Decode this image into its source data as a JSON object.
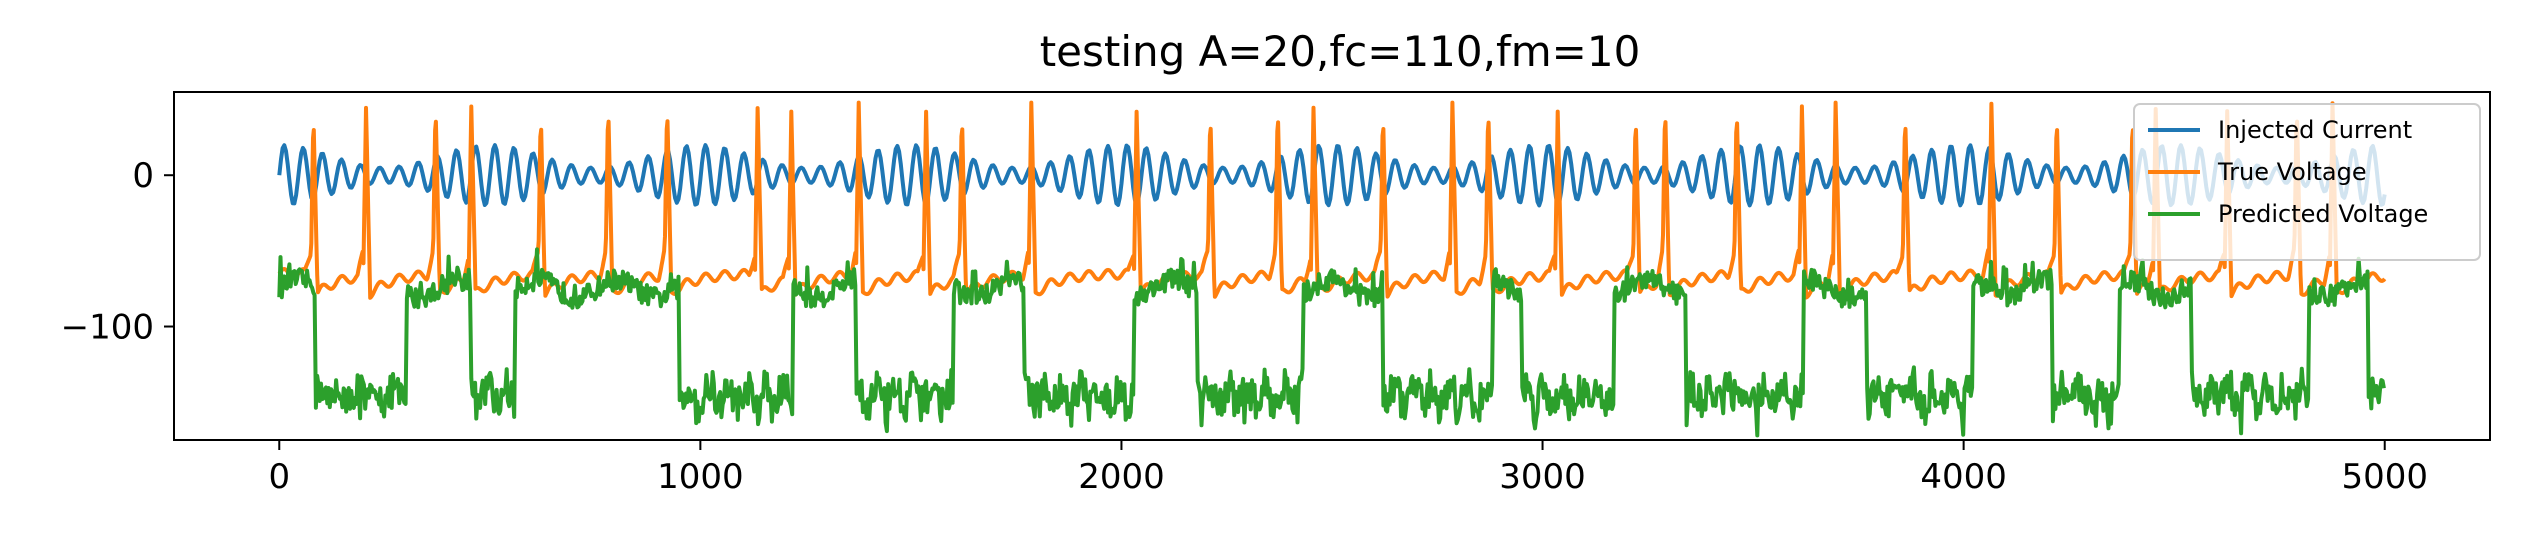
{
  "chart_data": {
    "type": "line",
    "title": "testing A=20,fc=110,fm=10",
    "xlabel": "",
    "ylabel": "",
    "xlim": [
      -250,
      5250
    ],
    "ylim": [
      -175,
      55
    ],
    "x_ticks": [
      0,
      1000,
      2000,
      3000,
      4000,
      5000
    ],
    "x_tick_labels": [
      "0",
      "1000",
      "2000",
      "3000",
      "4000",
      "5000"
    ],
    "y_ticks": [
      0,
      -100
    ],
    "y_tick_labels": [
      "0",
      "−100"
    ],
    "grid": false,
    "legend_position": "upper right",
    "x_range": [
      0,
      5000
    ],
    "series": [
      {
        "name": "Injected Current",
        "color": "#1f77b4",
        "amplitude": 20,
        "carrier_period": 45.5,
        "mod_period": 500
      },
      {
        "name": "True Voltage",
        "color": "#ff7f0e",
        "rest": -65,
        "spike_peak": 45,
        "spike_times": [
          75,
          200,
          365,
          450,
          615,
          775,
          915,
          1130,
          1210,
          1370,
          1530,
          1615,
          1780,
          2030,
          2205,
          2365,
          2450,
          2615,
          2780,
          2865,
          3030,
          3215,
          3285,
          3455,
          3610,
          3690,
          3855,
          4060,
          4215,
          4395,
          4450,
          4620,
          4785,
          4870
        ]
      },
      {
        "name": "Predicted Voltage",
        "color": "#2ca02c",
        "high": -75,
        "low": -145,
        "low_intervals": [
          [
            85,
            300
          ],
          [
            455,
            560
          ],
          [
            950,
            1220
          ],
          [
            1370,
            1600
          ],
          [
            1770,
            2030
          ],
          [
            2180,
            2430
          ],
          [
            2620,
            2880
          ],
          [
            2950,
            3170
          ],
          [
            3340,
            3620
          ],
          [
            3770,
            4020
          ],
          [
            4210,
            4370
          ],
          [
            4540,
            4820
          ],
          [
            4960,
            5000
          ]
        ]
      }
    ]
  }
}
